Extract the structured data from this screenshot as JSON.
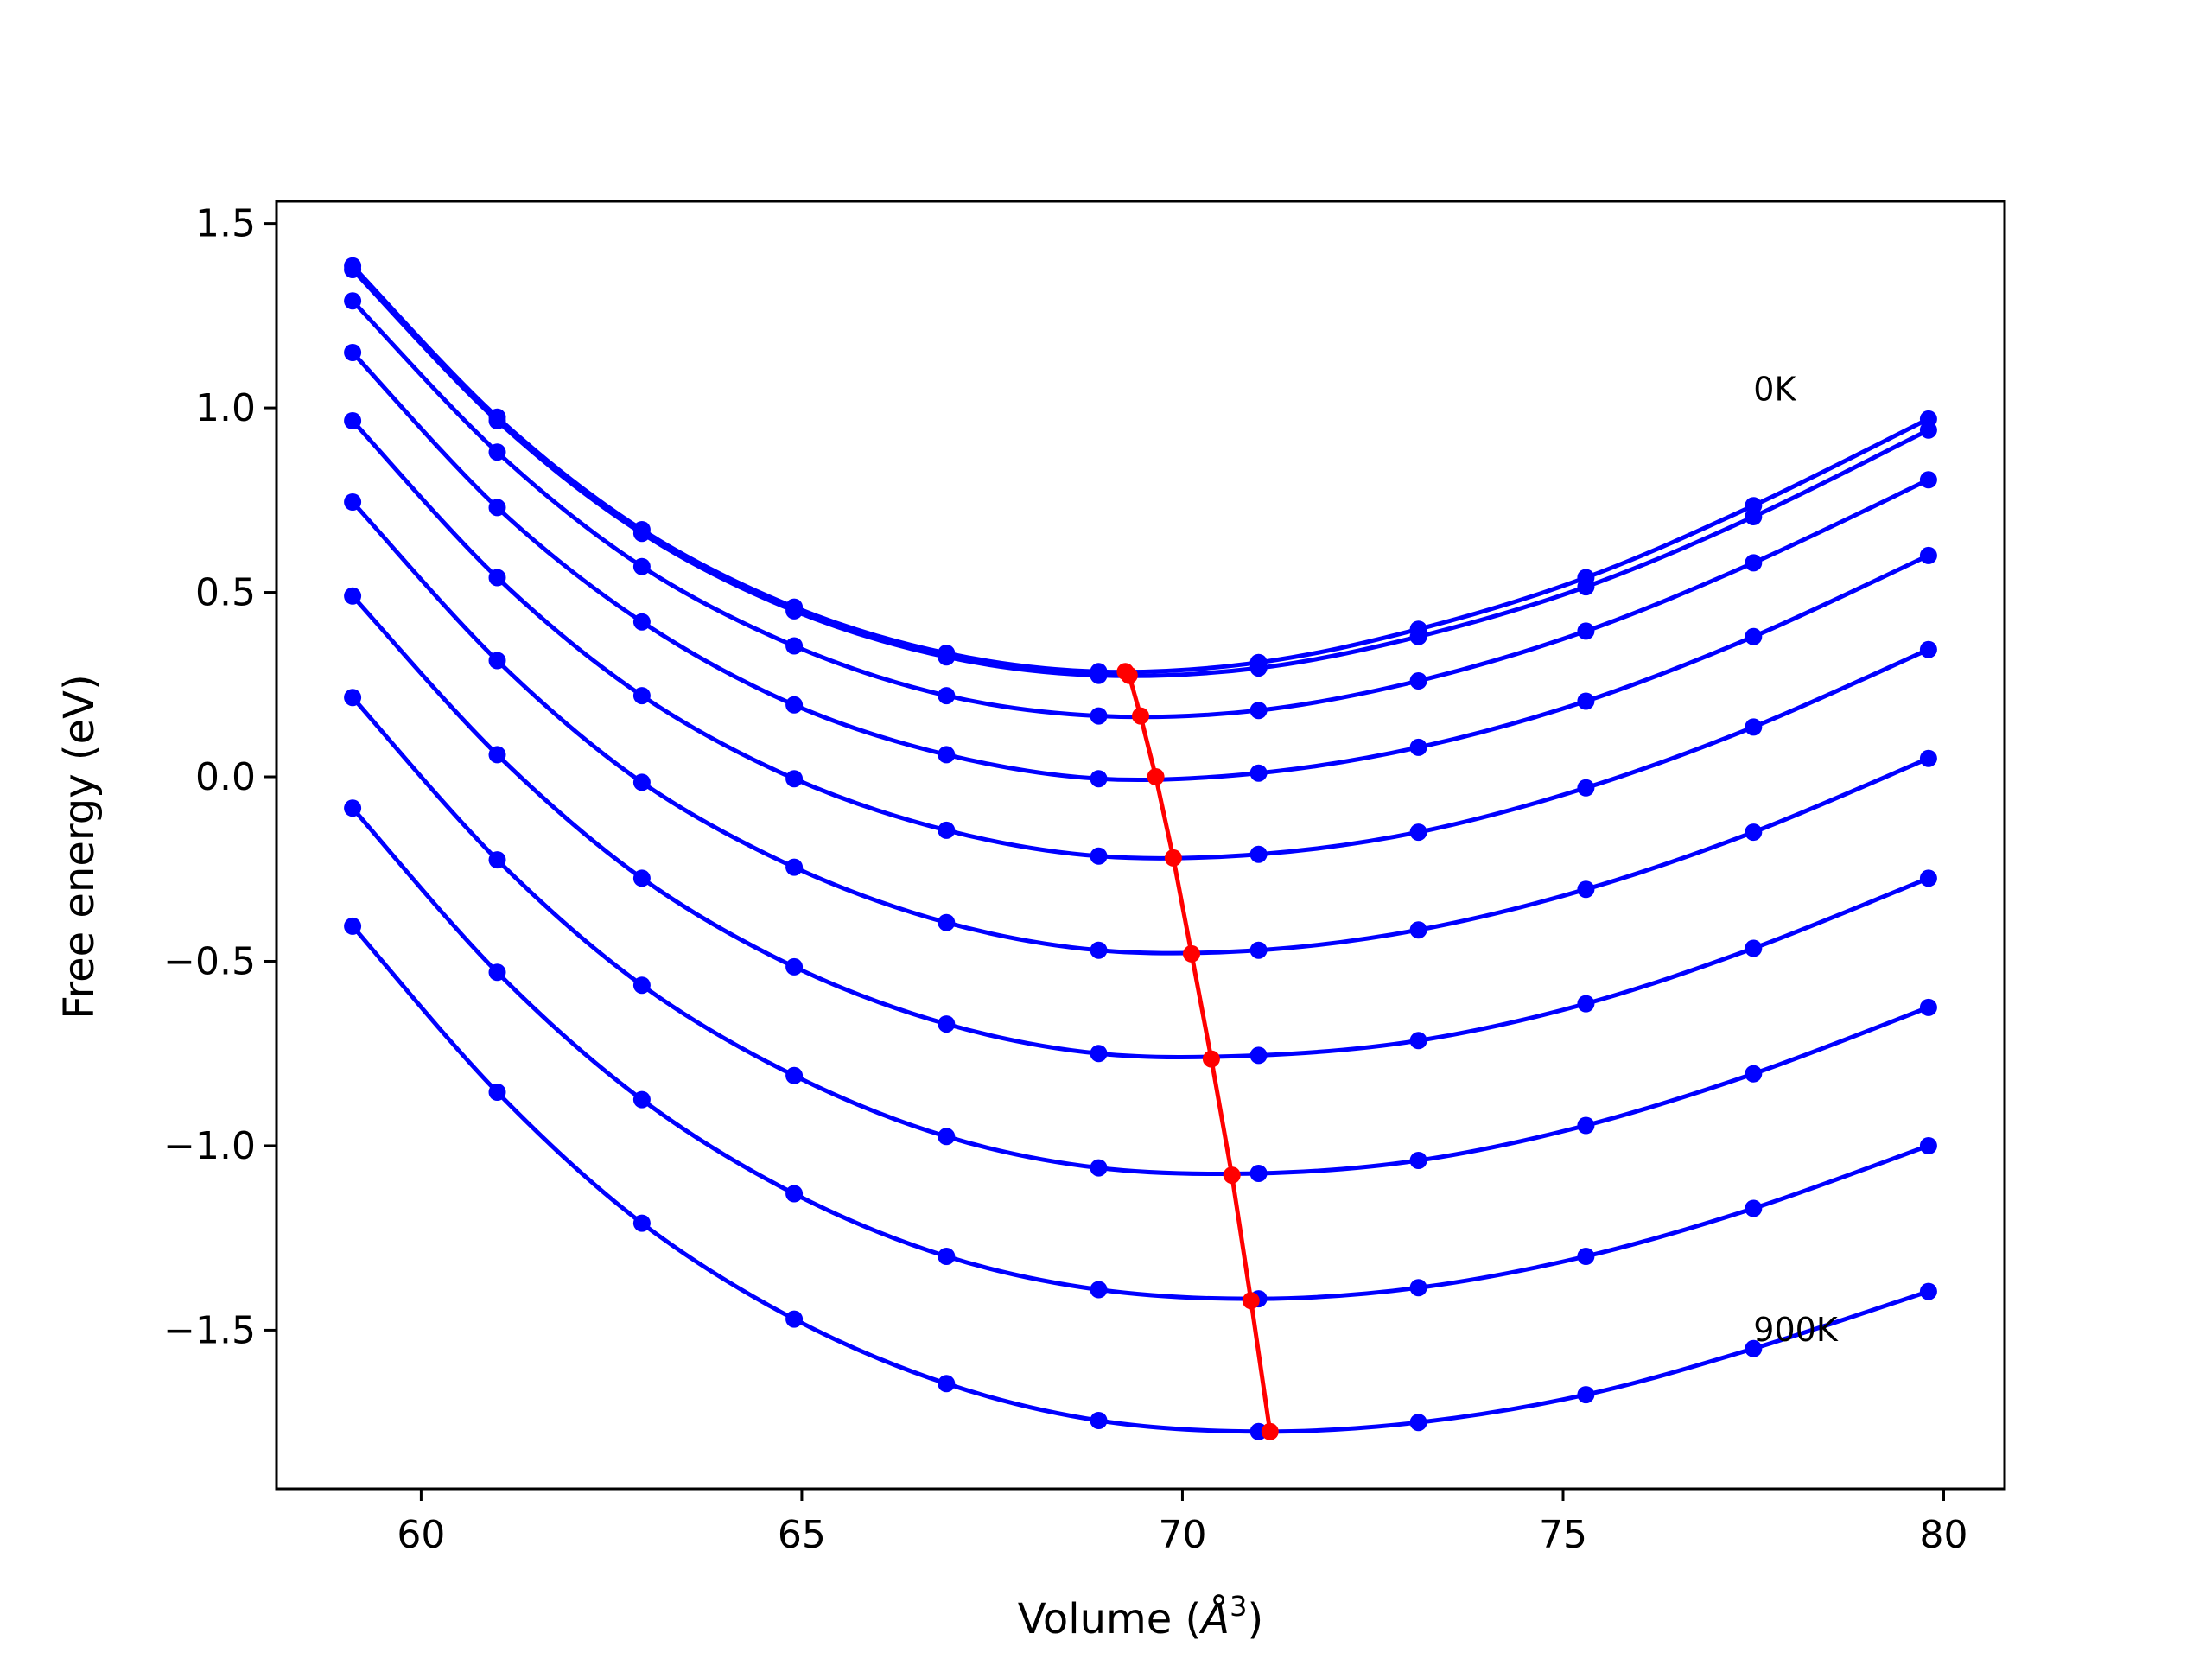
{
  "chart_data": {
    "type": "line",
    "xlabel": "Volume (Å³)",
    "xlabel_main": "Volume (",
    "xlabel_unit": "Å",
    "xlabel_exp": "3",
    "xlabel_close": ")",
    "ylabel": "Free energy (eV)",
    "xlim": [
      58.1,
      80.8
    ],
    "ylim": [
      -1.93,
      1.56
    ],
    "xticks": [
      60,
      65,
      70,
      75,
      80
    ],
    "xtick_labels": [
      "60",
      "65",
      "70",
      "75",
      "80"
    ],
    "yticks": [
      -1.5,
      -1.0,
      -0.5,
      0.0,
      0.5,
      1.0,
      1.5
    ],
    "ytick_labels": [
      "−1.5",
      "−1.0",
      "−0.5",
      "0.0",
      "0.5",
      "1.0",
      "1.5"
    ],
    "grid": false,
    "legend": "none",
    "volumes": [
      59.1,
      61.0,
      62.9,
      64.9,
      66.9,
      68.9,
      71.0,
      73.1,
      75.3,
      77.5,
      79.8
    ],
    "series": [
      {
        "values": [
          1.385,
          0.975,
          0.67,
          0.46,
          0.335,
          0.285,
          0.31,
          0.4,
          0.54,
          0.735,
          0.97
        ]
      },
      {
        "values": [
          1.375,
          0.965,
          0.66,
          0.45,
          0.325,
          0.275,
          0.295,
          0.38,
          0.515,
          0.705,
          0.94
        ]
      },
      {
        "values": [
          1.29,
          0.88,
          0.57,
          0.355,
          0.22,
          0.165,
          0.18,
          0.26,
          0.395,
          0.58,
          0.805
        ]
      },
      {
        "values": [
          1.15,
          0.73,
          0.42,
          0.195,
          0.06,
          -0.005,
          0.01,
          0.08,
          0.205,
          0.38,
          0.6
        ]
      },
      {
        "values": [
          0.965,
          0.54,
          0.22,
          -0.005,
          -0.145,
          -0.215,
          -0.21,
          -0.15,
          -0.03,
          0.135,
          0.345
        ]
      },
      {
        "values": [
          0.745,
          0.315,
          -0.015,
          -0.245,
          -0.395,
          -0.47,
          -0.47,
          -0.415,
          -0.305,
          -0.15,
          0.05
        ]
      },
      {
        "values": [
          0.49,
          0.06,
          -0.275,
          -0.515,
          -0.67,
          -0.75,
          -0.755,
          -0.715,
          -0.615,
          -0.465,
          -0.275
        ]
      },
      {
        "values": [
          0.215,
          -0.225,
          -0.565,
          -0.81,
          -0.975,
          -1.06,
          -1.075,
          -1.04,
          -0.945,
          -0.805,
          -0.625
        ]
      },
      {
        "values": [
          -0.085,
          -0.53,
          -0.875,
          -1.13,
          -1.3,
          -1.39,
          -1.415,
          -1.385,
          -1.3,
          -1.17,
          -1.0
        ]
      },
      {
        "values": [
          -0.405,
          -0.855,
          -1.21,
          -1.47,
          -1.645,
          -1.745,
          -1.775,
          -1.75,
          -1.675,
          -1.55,
          -1.395
        ]
      }
    ],
    "minima": {
      "x": [
        69.25,
        69.3,
        69.45,
        69.65,
        69.88,
        70.12,
        70.38,
        70.65,
        70.9,
        71.15
      ],
      "y": [
        0.285,
        0.275,
        0.165,
        0.0,
        -0.22,
        -0.48,
        -0.765,
        -1.08,
        -1.42,
        -1.775
      ]
    },
    "colors": {
      "curves": "#0000ff",
      "minima": "#ff0000",
      "axes": "#000000"
    },
    "annotations": [
      {
        "text": "0K",
        "x": 77.5,
        "y": 1.02
      },
      {
        "text": "900K",
        "x": 77.5,
        "y": -1.53
      }
    ]
  }
}
